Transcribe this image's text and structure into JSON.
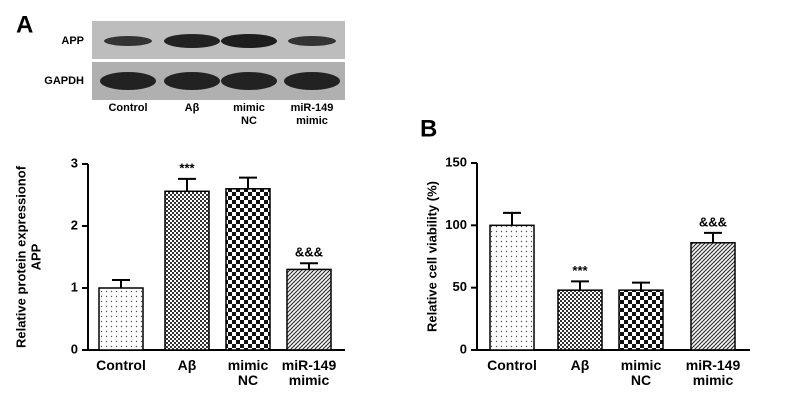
{
  "blot": {
    "panel": "A",
    "rows": [
      "APP",
      "GAPDH"
    ],
    "lanes": [
      "Control",
      "Aβ",
      "mimic NC",
      "miR-149 mimic"
    ]
  },
  "chart_data": [
    {
      "type": "bar",
      "ylabel": [
        "Relative protein expressionof",
        "APP"
      ],
      "categories": [
        "Control",
        "Aβ",
        "mimic NC",
        "miR-149 mimic"
      ],
      "values": [
        1.0,
        2.56,
        2.6,
        1.3
      ],
      "errors": [
        0.13,
        0.2,
        0.18,
        0.1
      ],
      "annotations": [
        null,
        "***",
        null,
        "&&&"
      ],
      "ylim": [
        0,
        3
      ],
      "yticks": [
        0,
        1,
        2,
        3
      ]
    },
    {
      "type": "bar",
      "panel": "B",
      "ylabel": [
        "Relative cell viability (%)"
      ],
      "categories": [
        "Control",
        "Aβ",
        "mimic NC",
        "miR-149 mimic"
      ],
      "values": [
        100,
        48,
        48,
        86
      ],
      "errors": [
        10,
        7,
        6,
        8
      ],
      "annotations": [
        null,
        "***",
        null,
        "&&&"
      ],
      "ylim": [
        0,
        150
      ],
      "yticks": [
        0,
        50,
        100,
        150
      ]
    }
  ]
}
